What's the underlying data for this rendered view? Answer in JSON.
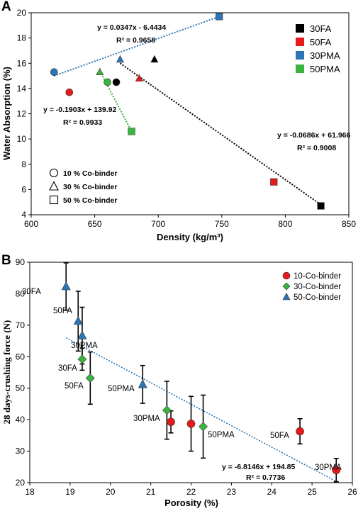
{
  "chart_data": [
    {
      "panel": "A",
      "type": "scatter",
      "xlabel": "Density (kg/m³)",
      "ylabel": "Water Absorption (%)",
      "xlim": [
        600,
        850
      ],
      "ylim": [
        4,
        20
      ],
      "xticks": [
        "600",
        "650",
        "700",
        "750",
        "800",
        "850"
      ],
      "yticks": [
        "4",
        "6",
        "8",
        "10",
        "12",
        "14",
        "16",
        "18",
        "20"
      ],
      "grid": false,
      "legend_position": "top-right",
      "series": [
        {
          "name": "30FA",
          "color": "#000000",
          "points": [
            {
              "x": 667,
              "y": 14.5,
              "shape": "circle"
            },
            {
              "x": 697,
              "y": 16.3,
              "shape": "triangle"
            },
            {
              "x": 828,
              "y": 4.7,
              "shape": "square"
            }
          ]
        },
        {
          "name": "50FA",
          "color": "#e8191b",
          "points": [
            {
              "x": 630,
              "y": 13.7,
              "shape": "circle"
            },
            {
              "x": 685,
              "y": 14.8,
              "shape": "triangle"
            },
            {
              "x": 791,
              "y": 6.6,
              "shape": "square"
            }
          ]
        },
        {
          "name": "30PMA",
          "color": "#2e75b6",
          "points": [
            {
              "x": 618,
              "y": 15.3,
              "shape": "circle"
            },
            {
              "x": 670,
              "y": 16.3,
              "shape": "triangle"
            },
            {
              "x": 748,
              "y": 19.7,
              "shape": "square"
            }
          ]
        },
        {
          "name": "50PMA",
          "color": "#39b53e",
          "points": [
            {
              "x": 660,
              "y": 14.5,
              "shape": "circle"
            },
            {
              "x": 654,
              "y": 15.3,
              "shape": "triangle"
            },
            {
              "x": 679,
              "y": 10.6,
              "shape": "square"
            }
          ]
        }
      ],
      "shape_legend": [
        {
          "shape": "circle",
          "label": "10 % Co-binder"
        },
        {
          "shape": "triangle",
          "label": "30 % Co-binder"
        },
        {
          "shape": "square",
          "label": "50 % Co-binder"
        }
      ],
      "trendlines": [
        {
          "color": "#2e75b6",
          "from": [
            618,
            15.0
          ],
          "to": [
            748,
            19.7
          ],
          "equation": "y = 0.0347x - 6.4434",
          "r2": "R² = 0.9658"
        },
        {
          "color": "#39b53e",
          "from": [
            654,
            15.4
          ],
          "to": [
            679,
            10.6
          ],
          "equation": "y = -0.1903x + 139.92",
          "r2": "R² = 0.9933"
        },
        {
          "color": "#000000",
          "from": [
            670,
            16.0
          ],
          "to": [
            828,
            4.8
          ],
          "equation": "y = -0.0686x + 61.966",
          "r2": "R² = 0.9008"
        }
      ]
    },
    {
      "panel": "B",
      "type": "scatter",
      "xlabel": "Porosity (%)",
      "ylabel": "28 days-crushing force (N)",
      "xlim": [
        18,
        26
      ],
      "ylim": [
        20,
        90
      ],
      "xticks": [
        "18",
        "19",
        "20",
        "21",
        "22",
        "23",
        "24",
        "25",
        "26"
      ],
      "yticks": [
        "20",
        "30",
        "40",
        "50",
        "60",
        "70",
        "80",
        "90"
      ],
      "grid": false,
      "legend_position": "top-right",
      "series": [
        {
          "name": "10-Co-binder",
          "color": "#e8191b",
          "shape": "circle",
          "points": [
            {
              "x": 21.5,
              "y": 39.3,
              "err": 3.5
            },
            {
              "x": 22.0,
              "y": 38.7,
              "err": 8.7
            },
            {
              "x": 24.7,
              "y": 36.3,
              "err": 4.0,
              "label": "50FA"
            },
            {
              "x": 25.6,
              "y": 24.0,
              "err": 3.7,
              "label": "30PMA"
            }
          ]
        },
        {
          "name": "30-Co-binder",
          "color": "#39b53e",
          "shape": "diamond",
          "points": [
            {
              "x": 19.3,
              "y": 59.2,
              "err": 3.5,
              "label": "30FA"
            },
            {
              "x": 19.5,
              "y": 53.2,
              "err": 8.3,
              "label": "50FA"
            },
            {
              "x": 21.4,
              "y": 43.0,
              "err": 9.2,
              "label": "30PMA"
            },
            {
              "x": 22.3,
              "y": 37.8,
              "err": 10.0,
              "label": "50PMA"
            }
          ]
        },
        {
          "name": "50-Co-binder",
          "color": "#2e75b6",
          "shape": "triangle",
          "points": [
            {
              "x": 18.9,
              "y": 82.3,
              "err": 7.5,
              "label": "30FA"
            },
            {
              "x": 19.2,
              "y": 71.3,
              "err": 9.5,
              "label": "50FA"
            },
            {
              "x": 19.3,
              "y": 66.7,
              "err": 9.0,
              "label": "30PMA"
            },
            {
              "x": 20.8,
              "y": 51.2,
              "err": 6.0,
              "label": "50PMA"
            }
          ]
        }
      ],
      "trendline": {
        "color": "#2e75b6",
        "from": [
          18.9,
          66.0
        ],
        "to": [
          25.6,
          20.4
        ],
        "equation": "y = -6.8146x + 194.85",
        "r2": "R² = 0.7736"
      }
    }
  ]
}
